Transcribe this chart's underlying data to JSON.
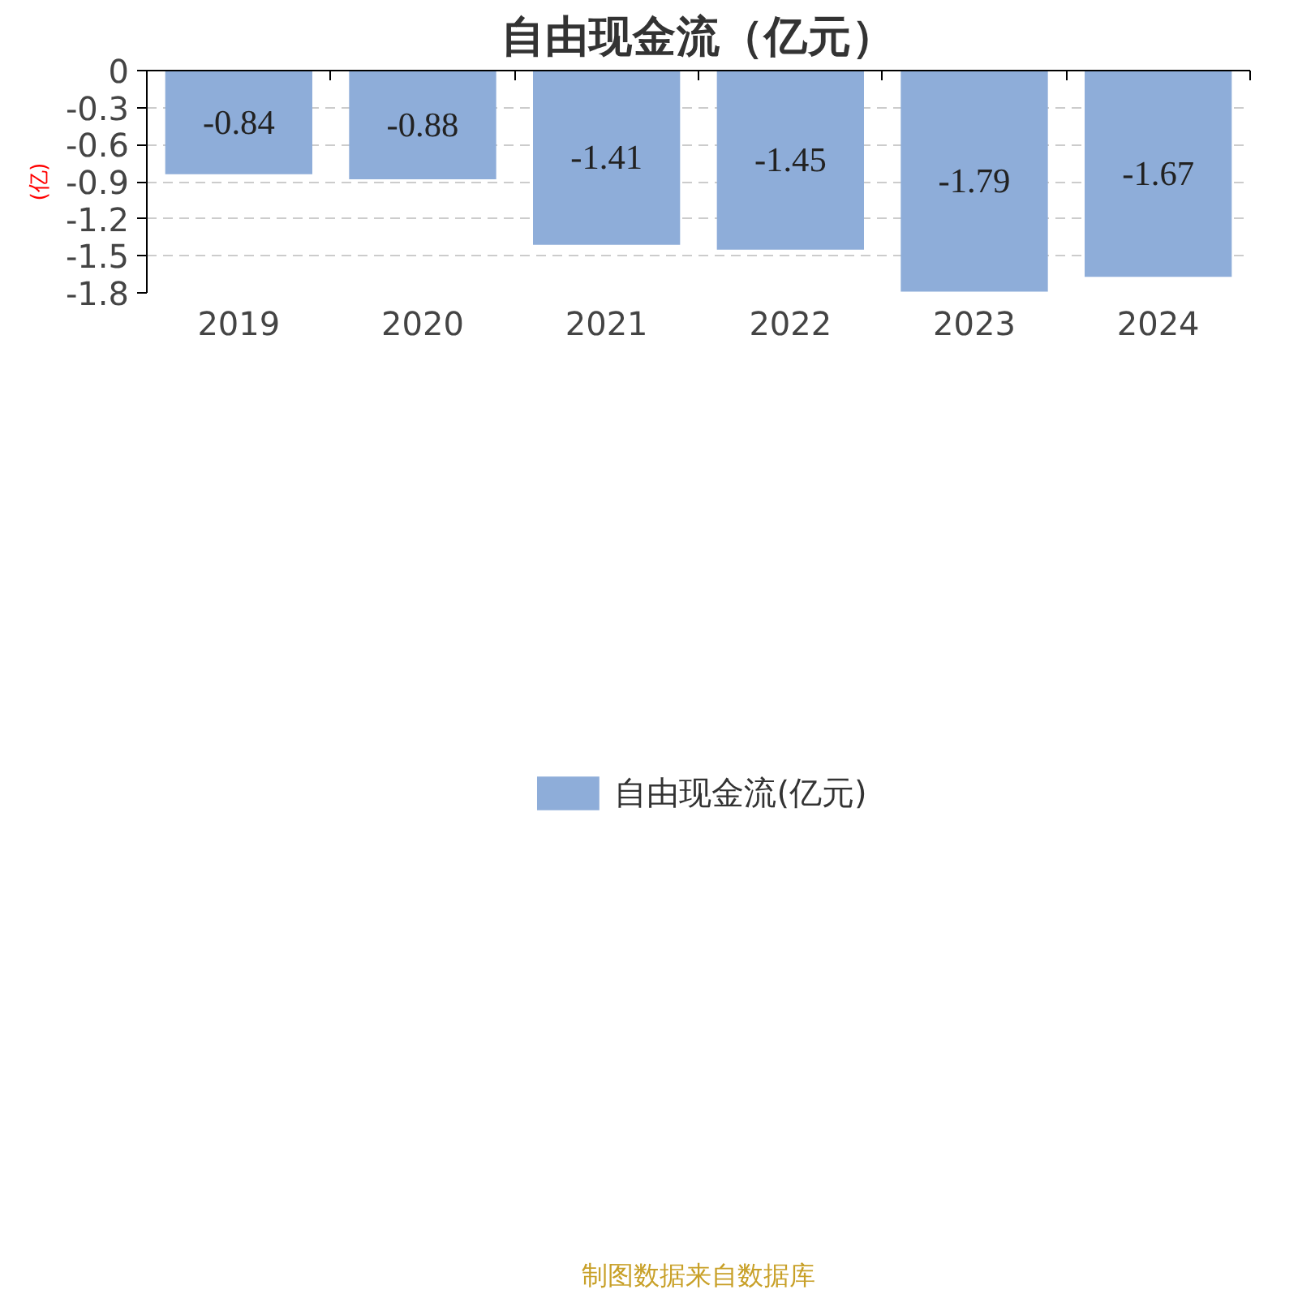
{
  "chart_data": {
    "type": "bar",
    "title": "自由现金流（亿元）",
    "ylabel": "(亿)",
    "categories": [
      "2019",
      "2020",
      "2021",
      "2022",
      "2023",
      "2024"
    ],
    "series": [
      {
        "name": "自由现金流(亿元)",
        "color": "#8eadd9",
        "values": [
          -0.84,
          -0.88,
          -1.41,
          -1.45,
          -1.79,
          -1.67
        ]
      }
    ],
    "ylim": [
      -1.8,
      0
    ],
    "yticks": [
      0,
      -0.3,
      -0.6,
      -0.9,
      -1.2,
      -1.5,
      -1.8
    ],
    "grid": "y",
    "legend": "bottom",
    "data_labels": true,
    "annotations": [
      "制图数据来自数据库"
    ]
  }
}
